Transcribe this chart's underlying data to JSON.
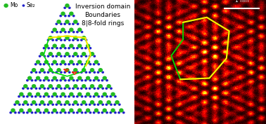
{
  "title_text": "Inversion domain\nBoundaries\n8|8-fold rings",
  "title_fontsize": 6.5,
  "bg_color": "#ffffff",
  "mo_color": "#22bb22",
  "se_color": "#2222cc",
  "mo_label": "Mo",
  "se_label": "Se₂",
  "scalebar_label": "1 nm",
  "green_line_color": "#00dd00",
  "yellow_line_color": "#ffee00",
  "red_tri_color": "#ff2200",
  "lw_green": 1.2,
  "lw_yellow": 1.5,
  "panel_split": 0.505,
  "left_bg": "#ffffff",
  "right_bg": "#000000"
}
